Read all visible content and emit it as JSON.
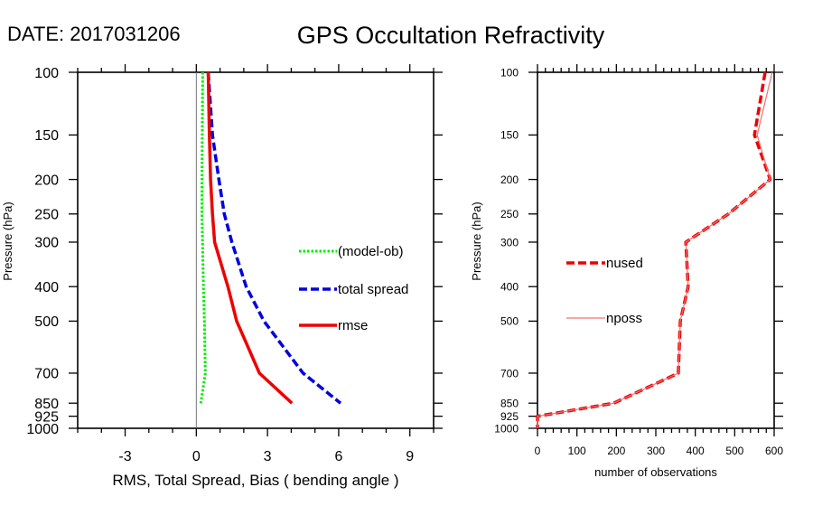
{
  "header": {
    "date_label": "DATE: 2017031206",
    "title": "GPS Occultation Refractivity"
  },
  "chart_data": [
    {
      "type": "line",
      "name": "stats-profile",
      "title": "GPS Occultation Refractivity",
      "xlabel": "RMS, Total Spread, Bias ( bending angle )",
      "ylabel": "Pressure (hPa)",
      "xlim": [
        -5,
        10
      ],
      "ylim": [
        1000,
        100
      ],
      "yscale": "log",
      "grid": false,
      "x_ticks": [
        -3,
        0,
        3,
        6,
        9
      ],
      "x_tick_labels": [
        "-3",
        "0",
        "3",
        "6",
        "9"
      ],
      "y_ticks": [
        100,
        150,
        200,
        250,
        300,
        400,
        500,
        700,
        850,
        925,
        1000
      ],
      "y_tick_labels": [
        "100",
        "150",
        "200",
        "250",
        "300",
        "400",
        "500",
        "700",
        "850",
        "925",
        "1000"
      ],
      "zero_line": 0,
      "legend_position": "center-right",
      "y": [
        100,
        150,
        200,
        250,
        300,
        400,
        500,
        700,
        850
      ],
      "series": [
        {
          "name": "(model-ob)",
          "color": "#00ee00",
          "style": "dotted",
          "values": [
            0.27,
            0.25,
            0.24,
            0.24,
            0.26,
            0.3,
            0.34,
            0.38,
            0.19
          ]
        },
        {
          "name": "total spread",
          "color": "#0000dd",
          "style": "dashed",
          "values": [
            0.5,
            0.68,
            0.95,
            1.18,
            1.5,
            2.1,
            2.85,
            4.5,
            6.08
          ]
        },
        {
          "name": "rmse",
          "color": "#ee0000",
          "style": "solid",
          "values": [
            0.5,
            0.55,
            0.6,
            0.68,
            0.77,
            1.33,
            1.7,
            2.66,
            4.03
          ]
        }
      ]
    },
    {
      "type": "line",
      "name": "obs-count-profile",
      "xlabel": "number of observations",
      "ylabel": "Pressure (hPa)",
      "xlim": [
        0,
        600
      ],
      "ylim": [
        1000,
        100
      ],
      "yscale": "log",
      "grid": false,
      "x_ticks": [
        0,
        100,
        200,
        300,
        400,
        500,
        600
      ],
      "x_tick_labels": [
        "0",
        "100",
        "200",
        "300",
        "400",
        "500",
        "600"
      ],
      "y_ticks": [
        100,
        150,
        200,
        250,
        300,
        400,
        500,
        700,
        850,
        925,
        1000
      ],
      "y_tick_labels": [
        "100",
        "150",
        "200",
        "250",
        "300",
        "400",
        "500",
        "700",
        "850",
        "925",
        "1000"
      ],
      "legend_position": "center-left",
      "y": [
        100,
        150,
        200,
        250,
        300,
        400,
        500,
        700,
        850,
        925,
        1000
      ],
      "series": [
        {
          "name": "nused",
          "color": "#ee0000",
          "style": "dashed",
          "values": [
            577,
            550,
            590,
            484,
            376,
            382,
            362,
            357,
            193,
            0,
            0
          ]
        },
        {
          "name": "nposs",
          "color": "#f07070",
          "style": "solid-thin",
          "values": [
            595,
            557,
            590,
            484,
            376,
            382,
            362,
            357,
            193,
            0,
            0
          ]
        }
      ]
    }
  ]
}
